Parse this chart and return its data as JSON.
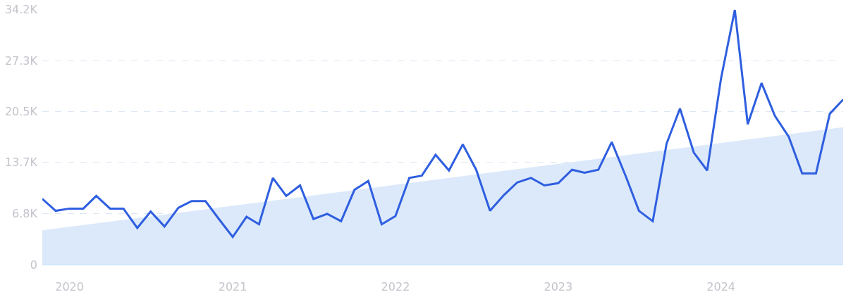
{
  "chart_data": {
    "type": "line",
    "xlim": [
      "2019-11",
      "2024-10"
    ],
    "xticks": [
      "2020",
      "2021",
      "2022",
      "2023",
      "2024"
    ],
    "ylim": [
      0,
      34200
    ],
    "yticks": [
      0,
      {
        "value": 6840,
        "label": "6.8K"
      },
      {
        "value": 13680,
        "label": "13.7K"
      },
      {
        "value": 20520,
        "label": "20.5K"
      },
      {
        "value": 27300,
        "label": "27.3K"
      },
      {
        "value": 34200,
        "label": "34.2K"
      }
    ],
    "grid": "y",
    "marker": "none",
    "line_style": "solid",
    "series": [
      {
        "type": "area",
        "color": "#dce9fa",
        "x": [
          "2019-11",
          "2024-10"
        ],
        "values": [
          4600,
          18400
        ]
      },
      {
        "color": "#2f5fe0",
        "x": [
          "2019-11",
          "2019-12",
          "2020-01",
          "2020-02",
          "2020-03",
          "2020-04",
          "2020-05",
          "2020-06",
          "2020-07",
          "2020-08",
          "2020-09",
          "2020-10",
          "2020-11",
          "2020-12",
          "2021-01",
          "2021-02",
          "2021-03",
          "2021-04",
          "2021-05",
          "2021-06",
          "2021-07",
          "2021-08",
          "2021-09",
          "2021-10",
          "2021-11",
          "2021-12",
          "2022-01",
          "2022-02",
          "2022-03",
          "2022-04",
          "2022-05",
          "2022-06",
          "2022-07",
          "2022-08",
          "2022-09",
          "2022-10",
          "2022-11",
          "2022-12",
          "2023-01",
          "2023-02",
          "2023-03",
          "2023-04",
          "2023-05",
          "2023-06",
          "2023-07",
          "2023-08",
          "2023-09",
          "2023-10",
          "2023-11",
          "2023-12",
          "2024-01",
          "2024-02",
          "2024-03",
          "2024-04",
          "2024-05",
          "2024-06",
          "2024-07",
          "2024-08",
          "2024-09",
          "2024-10"
        ],
        "values": [
          8800,
          7200,
          7500,
          7500,
          9200,
          7500,
          7500,
          4900,
          7100,
          5100,
          7600,
          8500,
          8500,
          6100,
          3700,
          6400,
          5400,
          11600,
          9200,
          10600,
          6100,
          6800,
          5800,
          10000,
          11200,
          5400,
          6500,
          11600,
          11900,
          14700,
          12600,
          16100,
          12700,
          7200,
          9300,
          11000,
          11600,
          10600,
          10900,
          12700,
          12300,
          12700,
          16400,
          11900,
          7200,
          5800,
          16200,
          20900,
          15000,
          12600,
          24900,
          34100,
          18800,
          24300,
          19900,
          17100,
          12200,
          12200,
          20200,
          22100
        ]
      }
    ]
  }
}
